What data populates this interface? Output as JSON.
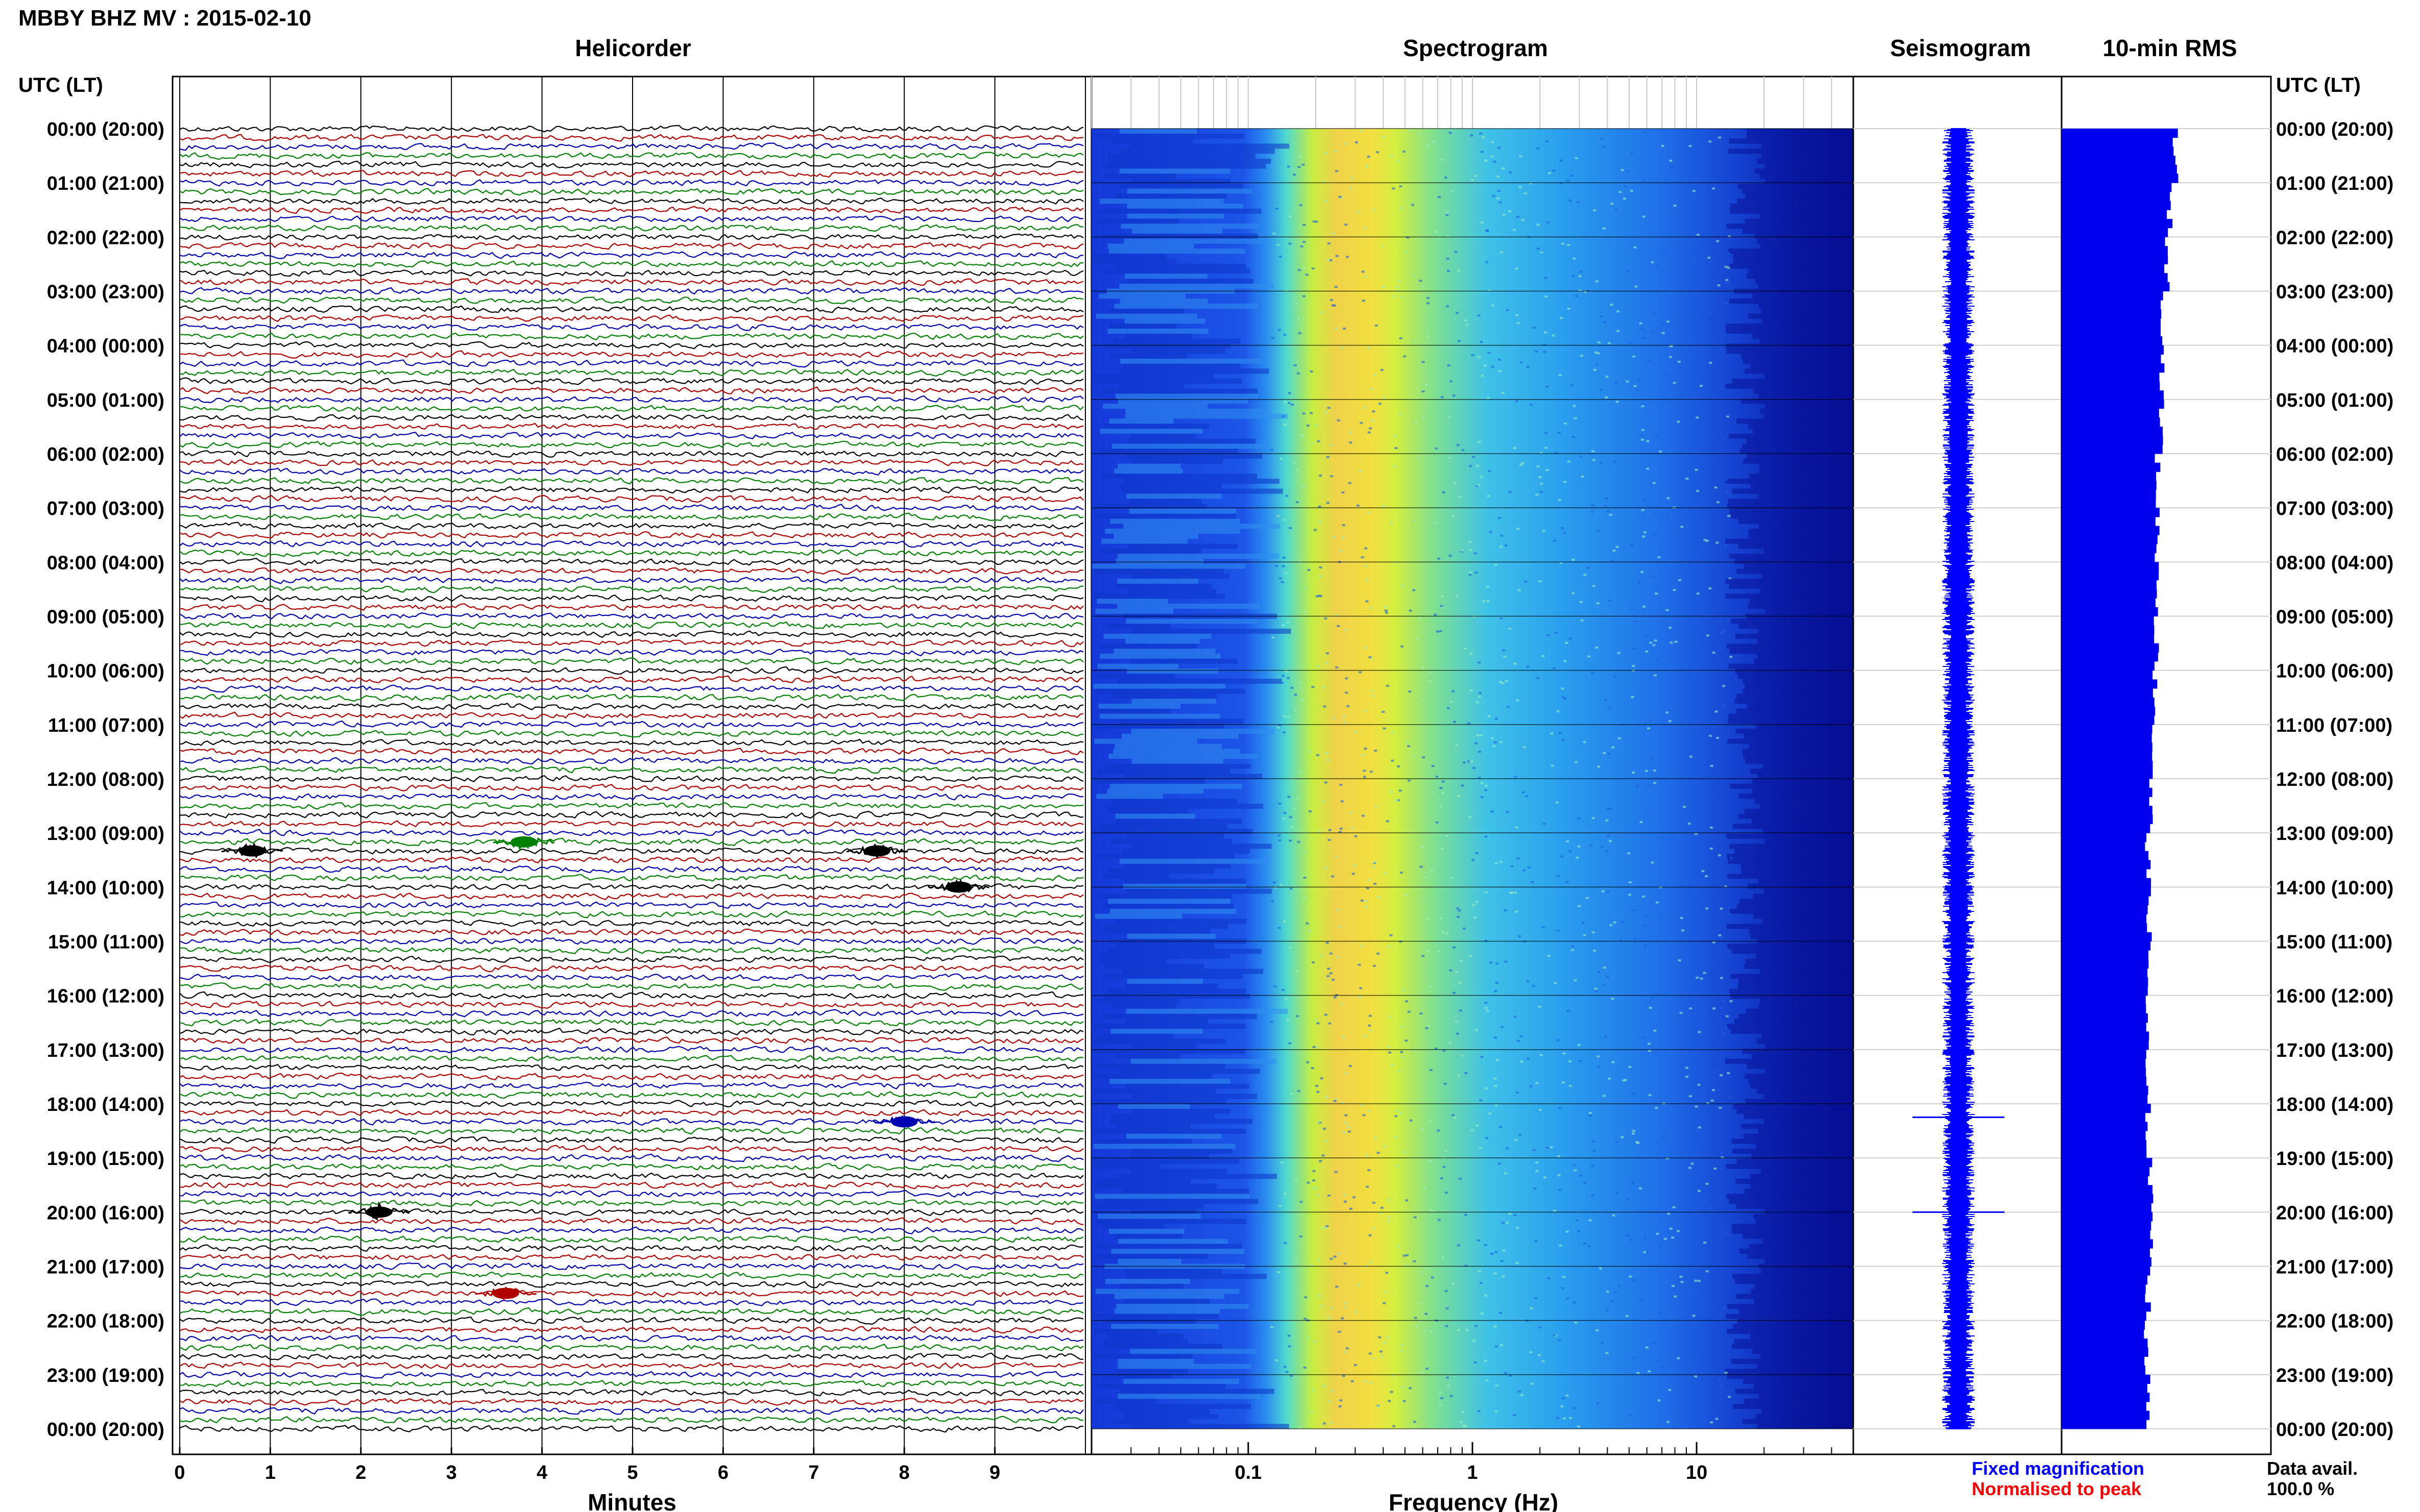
{
  "header": {
    "station_title": "MBBY BHZ MV : 2015-02-10"
  },
  "panels": {
    "helicorder": "Helicorder",
    "spectrogram": "Spectrogram",
    "seismogram": "Seismogram",
    "rms": "10-min RMS"
  },
  "axes": {
    "left_time_label": "UTC (LT)",
    "right_time_label": "UTC (LT)",
    "time_ticks": [
      "00:00 (20:00)",
      "01:00 (21:00)",
      "02:00 (22:00)",
      "03:00 (23:00)",
      "04:00 (00:00)",
      "05:00 (01:00)",
      "06:00 (02:00)",
      "07:00 (03:00)",
      "08:00 (04:00)",
      "09:00 (05:00)",
      "10:00 (06:00)",
      "11:00 (07:00)",
      "12:00 (08:00)",
      "13:00 (09:00)",
      "14:00 (10:00)",
      "15:00 (11:00)",
      "16:00 (12:00)",
      "17:00 (13:00)",
      "18:00 (14:00)",
      "19:00 (15:00)",
      "20:00 (16:00)",
      "21:00 (17:00)",
      "22:00 (18:00)",
      "23:00 (19:00)",
      "00:00 (20:00)"
    ],
    "minutes_label": "Minutes",
    "minutes_ticks": [
      "0",
      "1",
      "2",
      "3",
      "4",
      "5",
      "6",
      "7",
      "8",
      "9"
    ],
    "frequency_label": "Frequency (Hz)",
    "frequency_ticks": [
      "0.1",
      "1",
      "10"
    ]
  },
  "legend": {
    "fixed": "Fixed magnification",
    "normalised": "Normalised to peak"
  },
  "availability": {
    "label": "Data avail.",
    "value": "100.0 %"
  },
  "colors": {
    "trace_cycle": [
      "#000000",
      "#b00000",
      "#0000b0",
      "#008000"
    ],
    "seismogram": "#0000ff",
    "rms_bars": "#0000ee",
    "fixed_legend": "#0000ff",
    "normalised_legend": "#ff0000"
  },
  "chart_data": [
    {
      "type": "line",
      "title": "Helicorder",
      "xlabel": "Minutes",
      "xlim": [
        0,
        10
      ],
      "rows_per_hour": 6,
      "hours": 24,
      "events": [
        {
          "time_utc": "13:20",
          "minute": 0.8
        },
        {
          "time_utc": "13:20",
          "minute": 7.7
        },
        {
          "time_utc": "13:10",
          "minute": 3.8
        },
        {
          "time_utc": "14:00",
          "minute": 8.6
        },
        {
          "time_utc": "18:20",
          "minute": 8.0
        },
        {
          "time_utc": "20:00",
          "minute": 2.2
        },
        {
          "time_utc": "21:30",
          "minute": 3.6
        }
      ]
    },
    {
      "type": "heatmap",
      "title": "Spectrogram",
      "xlabel": "Frequency (Hz)",
      "xscale": "log",
      "xlim": [
        0.02,
        50
      ],
      "peak_band_hz": [
        0.15,
        0.4
      ]
    },
    {
      "type": "line",
      "title": "Seismogram",
      "spikes_utc": [
        "18:15",
        "20:00"
      ]
    },
    {
      "type": "bar",
      "title": "10-min RMS",
      "orientation": "horizontal",
      "interval_minutes": 10,
      "hourly_relative_values": [
        0.95,
        0.9,
        0.88,
        0.85,
        0.84,
        0.83,
        0.8,
        0.8,
        0.8,
        0.79,
        0.78,
        0.76,
        0.74,
        0.72,
        0.73,
        0.72,
        0.71,
        0.7,
        0.72,
        0.74,
        0.76,
        0.72,
        0.7,
        0.73
      ]
    }
  ]
}
